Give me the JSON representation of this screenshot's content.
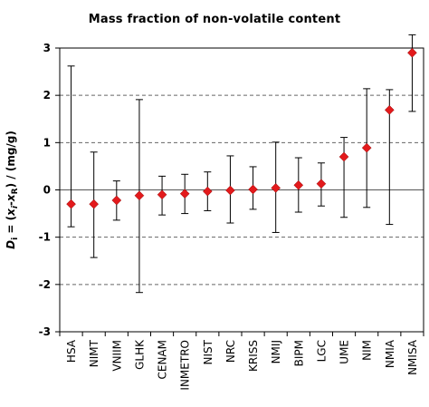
{
  "chart_data": {
    "type": "scatter",
    "title": "Mass fraction of non-volatile content",
    "ylabel_parts": {
      "d": "D",
      "i_sub": "i",
      "eq_open": " = (",
      "x": "x",
      "x_sub": "i",
      "minus": "-",
      "x2": "x",
      "x2_sub": "R",
      "rest": ") / (mg/g)"
    },
    "ylim": [
      -3,
      3
    ],
    "yticks": [
      "-3",
      "-2",
      "-1",
      "0",
      "1",
      "2",
      "3"
    ],
    "grid": "dashed horizontal at integer values",
    "zero_line": true,
    "marker_color": "#e31a1c",
    "categories": [
      "HSA",
      "NIMT",
      "VNIIM",
      "GLHK",
      "CENAM",
      "INMETRO",
      "NIST",
      "NRC",
      "KRISS",
      "NMIJ",
      "BIPM",
      "LGC",
      "UME",
      "NIM",
      "NMIA",
      "NMISA"
    ],
    "values": [
      -0.3,
      -0.3,
      -0.22,
      -0.12,
      -0.1,
      -0.08,
      -0.03,
      -0.01,
      0.01,
      0.04,
      0.1,
      0.13,
      0.7,
      0.89,
      1.69,
      2.9
    ],
    "upper": [
      2.62,
      0.8,
      0.19,
      1.91,
      0.29,
      0.33,
      0.38,
      0.72,
      0.49,
      1.01,
      0.68,
      0.57,
      1.11,
      2.14,
      2.12,
      3.28
    ],
    "lower": [
      -0.78,
      -1.43,
      -0.64,
      -2.17,
      -0.53,
      -0.5,
      -0.44,
      -0.7,
      -0.41,
      -0.9,
      -0.47,
      -0.34,
      -0.58,
      -0.37,
      -0.73,
      1.66
    ]
  }
}
